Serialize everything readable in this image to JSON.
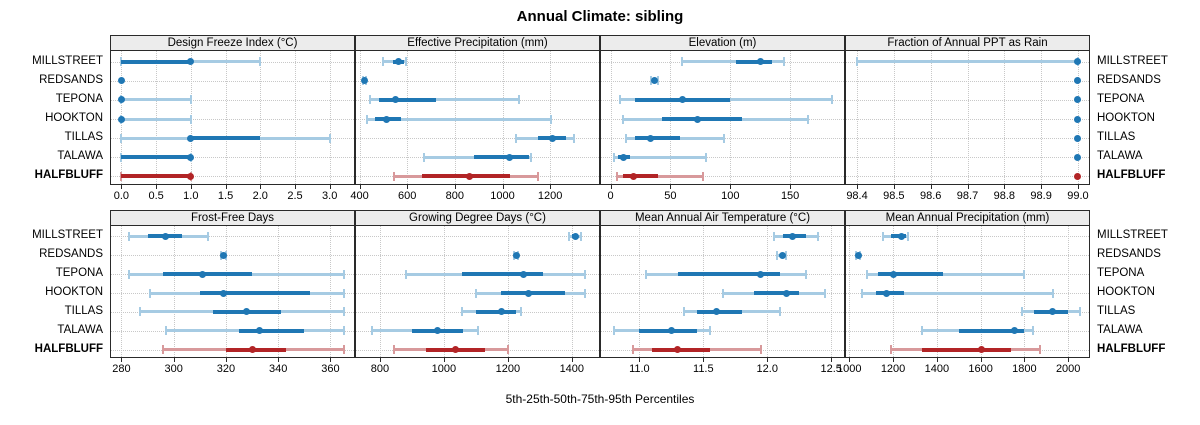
{
  "colors": {
    "blue": "#1f77b4",
    "blue_light": "#a6cbe3",
    "red": "#b22426",
    "red_light": "#d8999b",
    "header_bg": "#ececec",
    "grid": "#c8c8c8",
    "border": "#2a2a2a"
  },
  "sites": [
    {
      "name": "MILLSTREET",
      "bold": false,
      "color": "blue"
    },
    {
      "name": "REDSANDS",
      "bold": false,
      "color": "blue"
    },
    {
      "name": "TEPONA",
      "bold": false,
      "color": "blue"
    },
    {
      "name": "HOOKTON",
      "bold": false,
      "color": "blue"
    },
    {
      "name": "TILLAS",
      "bold": false,
      "color": "blue"
    },
    {
      "name": "TALAWA",
      "bold": false,
      "color": "blue"
    },
    {
      "name": "HALFBLUFF",
      "bold": true,
      "color": "red"
    }
  ],
  "chart_data": {
    "type": "scatter",
    "style": "lattice trellis of percentile dot-whisker plots; dot = 50th percentile, thick bar = 25th-75th, thin line with end caps = 5th-95th",
    "title": "Annual Climate: sibling",
    "caption": "5th-25th-50th-75th-95th Percentiles",
    "percentiles": [
      "5th",
      "25th",
      "50th",
      "75th",
      "95th"
    ],
    "rows": [
      "MILLSTREET",
      "REDSANDS",
      "TEPONA",
      "HOOKTON",
      "TILLAS",
      "TALAWA",
      "HALFBLUFF"
    ],
    "highlight_row": "HALFBLUFF",
    "legend_position": "none",
    "grid": true,
    "panels": [
      {
        "title": "Design Freeze Index (°C)",
        "domain": [
          -0.15,
          3.35
        ],
        "tick_values": [
          0,
          0.5,
          1,
          1.5,
          2,
          2.5,
          3
        ],
        "tick_labels": [
          "0.0",
          "0.5",
          "1.0",
          "1.5",
          "2.0",
          "2.5",
          "3.0"
        ],
        "series": {
          "MILLSTREET": [
            0,
            0,
            1,
            1,
            2
          ],
          "REDSANDS": [
            0,
            0,
            0,
            0,
            0
          ],
          "TEPONA": [
            0,
            0,
            0,
            0,
            1
          ],
          "HOOKTON": [
            0,
            0,
            0,
            0,
            1
          ],
          "TILLAS": [
            0,
            1,
            1,
            2,
            3
          ],
          "TALAWA": [
            0,
            0,
            1,
            1,
            1
          ],
          "HALFBLUFF": [
            0,
            0,
            1,
            1,
            1
          ]
        }
      },
      {
        "title": "Effective Precipitation (mm)",
        "domain": [
          385,
          1405
        ],
        "tick_values": [
          400,
          600,
          800,
          1000,
          1200
        ],
        "tick_labels": [
          "400",
          "600",
          "800",
          "1000",
          "1200"
        ],
        "series": {
          "MILLSTREET": [
            500,
            540,
            565,
            585,
            595
          ],
          "REDSANDS": [
            415,
            418,
            420,
            422,
            425
          ],
          "TEPONA": [
            445,
            480,
            550,
            720,
            1070
          ],
          "HOOKTON": [
            430,
            465,
            515,
            575,
            1205
          ],
          "TILLAS": [
            1055,
            1150,
            1210,
            1265,
            1300
          ],
          "TALAWA": [
            670,
            880,
            1030,
            1110,
            1120
          ],
          "HALFBLUFF": [
            545,
            660,
            860,
            1030,
            1150
          ]
        }
      },
      {
        "title": "Elevation (m)",
        "domain": [
          -8,
          195
        ],
        "tick_values": [
          0,
          50,
          100,
          150
        ],
        "tick_labels": [
          "0",
          "50",
          "100",
          "150"
        ],
        "series": {
          "MILLSTREET": [
            60,
            105,
            125,
            135,
            145
          ],
          "REDSANDS": [
            34,
            36,
            37,
            38,
            40
          ],
          "TEPONA": [
            8,
            20,
            60,
            100,
            185
          ],
          "HOOKTON": [
            10,
            43,
            73,
            110,
            165
          ],
          "TILLAS": [
            13,
            20,
            33,
            58,
            95
          ],
          "TALAWA": [
            3,
            6,
            11,
            16,
            80
          ],
          "HALFBLUFF": [
            5,
            10,
            19,
            40,
            77
          ]
        }
      },
      {
        "title": "Fraction of Annual PPT as Rain",
        "domain": [
          98.37,
          99.03
        ],
        "tick_values": [
          98.4,
          98.5,
          98.6,
          98.7,
          98.8,
          98.9,
          99.0
        ],
        "tick_labels": [
          "98.4",
          "98.5",
          "98.6",
          "98.7",
          "98.8",
          "98.9",
          "99.0"
        ],
        "series": {
          "MILLSTREET": [
            98.4,
            99,
            99,
            99,
            99
          ],
          "REDSANDS": [
            99,
            99,
            99,
            99,
            99
          ],
          "TEPONA": [
            99,
            99,
            99,
            99,
            99
          ],
          "HOOKTON": [
            99,
            99,
            99,
            99,
            99
          ],
          "TILLAS": [
            99,
            99,
            99,
            99,
            99
          ],
          "TALAWA": [
            99,
            99,
            99,
            99,
            99
          ],
          "HALFBLUFF": [
            99,
            99,
            99,
            99,
            99
          ]
        }
      },
      {
        "title": "Frost-Free Days",
        "domain": [
          276,
          369
        ],
        "tick_values": [
          280,
          300,
          320,
          340,
          360
        ],
        "tick_labels": [
          "280",
          "300",
          "320",
          "340",
          "360"
        ],
        "series": {
          "MILLSTREET": [
            283,
            290,
            297,
            303,
            313
          ],
          "REDSANDS": [
            318,
            319,
            319,
            319,
            320
          ],
          "TEPONA": [
            283,
            296,
            311,
            330,
            365
          ],
          "HOOKTON": [
            291,
            310,
            319,
            352,
            365
          ],
          "TILLAS": [
            287,
            315,
            328,
            341,
            365
          ],
          "TALAWA": [
            297,
            325,
            333,
            350,
            365
          ],
          "HALFBLUFF": [
            296,
            320,
            330,
            343,
            365
          ]
        }
      },
      {
        "title": "Growing Degree Days (°C)",
        "domain": [
          725,
          1485
        ],
        "tick_values": [
          800,
          1000,
          1200,
          1400
        ],
        "tick_labels": [
          "800",
          "1000",
          "1200",
          "1400"
        ],
        "series": {
          "MILLSTREET": [
            1390,
            1400,
            1410,
            1420,
            1430
          ],
          "REDSANDS": [
            1220,
            1223,
            1226,
            1229,
            1232
          ],
          "TEPONA": [
            880,
            1055,
            1250,
            1310,
            1440
          ],
          "HOOKTON": [
            1100,
            1180,
            1265,
            1380,
            1440
          ],
          "TILLAS": [
            1055,
            1100,
            1180,
            1225,
            1240
          ],
          "TALAWA": [
            775,
            900,
            980,
            1060,
            1105
          ],
          "HALFBLUFF": [
            845,
            945,
            1035,
            1130,
            1200
          ]
        }
      },
      {
        "title": "Mean Annual Air Temperature (°C)",
        "domain": [
          10.7,
          12.6
        ],
        "tick_values": [
          11.0,
          11.5,
          12.0,
          12.5
        ],
        "tick_labels": [
          "11.0",
          "11.5",
          "12.0",
          "12.5"
        ],
        "series": {
          "MILLSTREET": [
            12.05,
            12.12,
            12.2,
            12.3,
            12.4
          ],
          "REDSANDS": [
            12.08,
            12.1,
            12.12,
            12.13,
            12.15
          ],
          "TEPONA": [
            11.05,
            11.3,
            11.95,
            12.1,
            12.3
          ],
          "HOOKTON": [
            11.65,
            11.9,
            12.15,
            12.25,
            12.45
          ],
          "TILLAS": [
            11.35,
            11.45,
            11.6,
            11.8,
            12.1
          ],
          "TALAWA": [
            10.8,
            11.0,
            11.25,
            11.45,
            11.55
          ],
          "HALFBLUFF": [
            10.95,
            11.1,
            11.3,
            11.55,
            11.95
          ]
        }
      },
      {
        "title": "Mean Annual Precipitation (mm)",
        "domain": [
          985,
          2095
        ],
        "tick_values": [
          1000,
          1200,
          1400,
          1600,
          1800,
          2000
        ],
        "tick_labels": [
          "1000",
          "1200",
          "1400",
          "1600",
          "1800",
          "2000"
        ],
        "series": {
          "MILLSTREET": [
            1155,
            1190,
            1240,
            1260,
            1270
          ],
          "REDSANDS": [
            1030,
            1035,
            1040,
            1045,
            1050
          ],
          "TEPONA": [
            1080,
            1130,
            1200,
            1430,
            1800
          ],
          "HOOKTON": [
            1060,
            1120,
            1170,
            1250,
            1930
          ],
          "TILLAS": [
            1790,
            1845,
            1930,
            2000,
            2055
          ],
          "TALAWA": [
            1330,
            1500,
            1755,
            1800,
            1840
          ],
          "HALFBLUFF": [
            1190,
            1330,
            1605,
            1740,
            1870
          ]
        }
      }
    ]
  }
}
